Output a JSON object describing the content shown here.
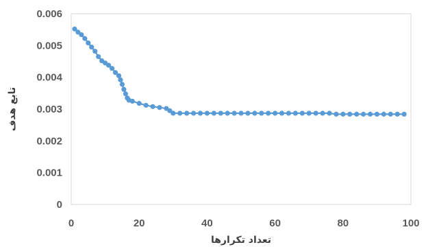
{
  "chart_data": {
    "type": "scatter",
    "title": "",
    "xlabel": "تعداد تکرارها",
    "ylabel": "تابع هدف",
    "xlim": [
      0,
      100
    ],
    "ylim": [
      0,
      0.006
    ],
    "x_ticks": [
      "0",
      "20",
      "40",
      "60",
      "80",
      "100"
    ],
    "y_ticks": [
      "0",
      "0.001",
      "0.002",
      "0.003",
      "0.004",
      "0.005",
      "0.006"
    ],
    "grid": false,
    "legend": "none",
    "marker": "circle",
    "connected": true,
    "series": [
      {
        "color": "#5B9BD5",
        "x": [
          1,
          2,
          3,
          4,
          5,
          6,
          7,
          8,
          9,
          10,
          11,
          12,
          13,
          14,
          14.5,
          15,
          15.5,
          16,
          16.5,
          17,
          18,
          20,
          22,
          24,
          26,
          28,
          29,
          30,
          32,
          34,
          36,
          38,
          40,
          42,
          44,
          46,
          48,
          50,
          52,
          54,
          56,
          58,
          60,
          62,
          64,
          66,
          68,
          70,
          72,
          74,
          76,
          78,
          80,
          82,
          84,
          86,
          88,
          90,
          92,
          94,
          96,
          98
        ],
        "y": [
          0.00552,
          0.00542,
          0.00534,
          0.00522,
          0.00508,
          0.00495,
          0.00482,
          0.00465,
          0.00452,
          0.00445,
          0.00438,
          0.00428,
          0.00415,
          0.00405,
          0.00392,
          0.00378,
          0.00362,
          0.00348,
          0.00335,
          0.00328,
          0.00325,
          0.00318,
          0.00312,
          0.00308,
          0.00305,
          0.00302,
          0.00295,
          0.00287,
          0.00287,
          0.00287,
          0.00287,
          0.00287,
          0.00287,
          0.00287,
          0.00287,
          0.00287,
          0.00287,
          0.00287,
          0.00287,
          0.00287,
          0.00287,
          0.00287,
          0.00287,
          0.00287,
          0.00287,
          0.00287,
          0.00287,
          0.00287,
          0.00287,
          0.00287,
          0.00287,
          0.00284,
          0.00284,
          0.00284,
          0.00284,
          0.00284,
          0.00284,
          0.00284,
          0.00284,
          0.00284,
          0.00284,
          0.00284
        ]
      }
    ]
  }
}
